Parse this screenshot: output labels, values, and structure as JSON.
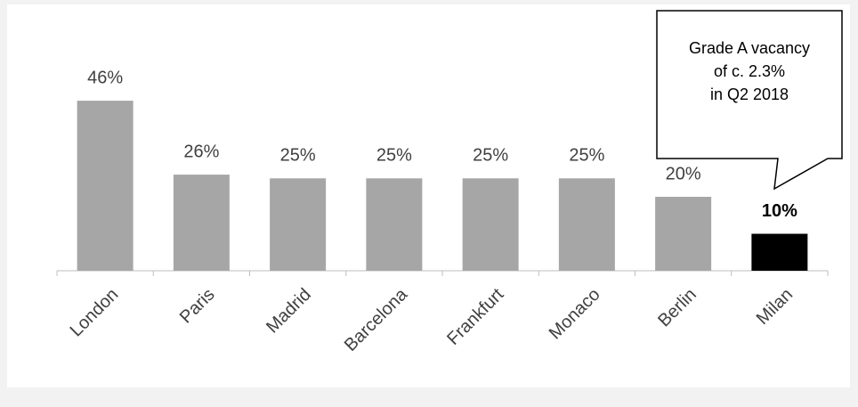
{
  "chart_data": {
    "type": "bar",
    "categories": [
      "London",
      "Paris",
      "Madrid",
      "Barcelona",
      "Frankfurt",
      "Monaco",
      "Berlin",
      "Milan"
    ],
    "values": [
      46,
      26,
      25,
      25,
      25,
      25,
      20,
      10
    ],
    "value_labels": [
      "46%",
      "26%",
      "25%",
      "25%",
      "25%",
      "25%",
      "20%",
      "10%"
    ],
    "colors": [
      "#a6a6a6",
      "#a6a6a6",
      "#a6a6a6",
      "#a6a6a6",
      "#a6a6a6",
      "#a6a6a6",
      "#a6a6a6",
      "#000000"
    ],
    "highlight": "Milan",
    "annotation": [
      "Grade A vacancy",
      "of c. 2.3%",
      "in Q2 2018"
    ]
  }
}
